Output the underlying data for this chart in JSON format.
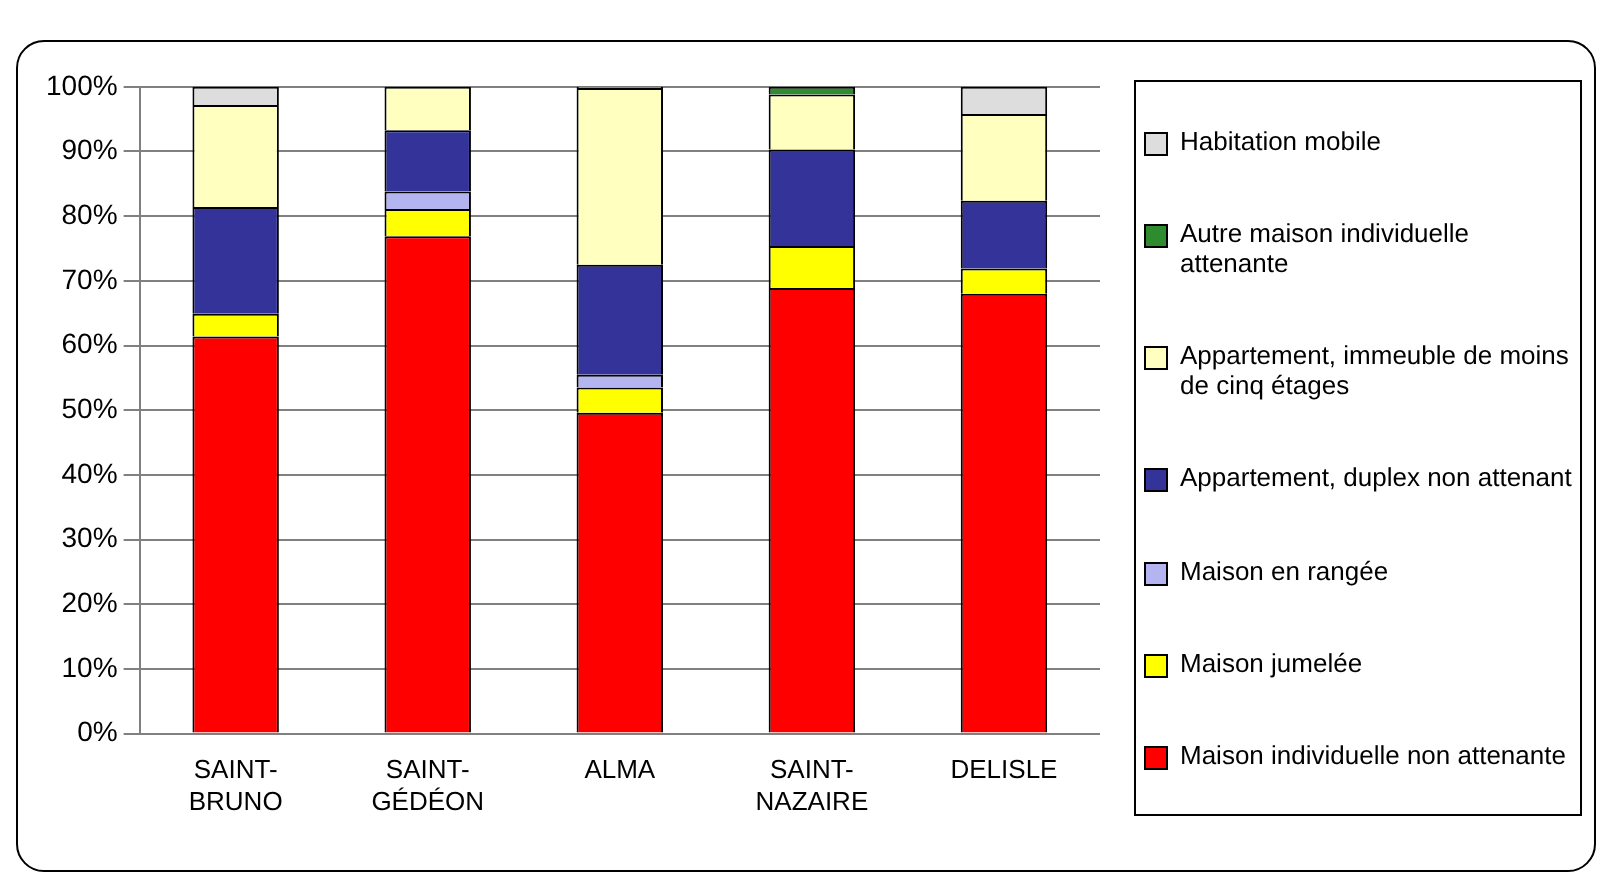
{
  "chart_data": {
    "type": "bar",
    "stacked": true,
    "categories": [
      "SAINT-BRUNO",
      "SAINT-GÉDÉON",
      "ALMA",
      "SAINT-NAZAIRE",
      "DELISLE"
    ],
    "series": [
      {
        "name": "Maison individuelle non attenante",
        "color": "#ff0000",
        "values": [
          61.4,
          76.9,
          49.6,
          68.9,
          68
        ]
      },
      {
        "name": "Maison jumelée",
        "color": "#ffff00",
        "values": [
          3.5,
          4.2,
          3.9,
          6.5,
          3.9
        ]
      },
      {
        "name": "Maison en rangée",
        "color": "#b4b4f0",
        "values": [
          0,
          2.7,
          2,
          0,
          0
        ]
      },
      {
        "name": "Appartement, duplex non attenant",
        "color": "#333399",
        "values": [
          16.5,
          9.5,
          17,
          14.9,
          10.5
        ]
      },
      {
        "name": "Appartement, immeuble de moins de cinq étages",
        "color": "#ffffc0",
        "values": [
          15.8,
          6.7,
          27.3,
          8.5,
          13.4
        ]
      },
      {
        "name": "Autre maison individuelle attenante",
        "color": "#2e8b2e",
        "values": [
          0,
          0,
          0,
          1.2,
          0
        ]
      },
      {
        "name": "Habitation mobile",
        "color": "#dddddd",
        "values": [
          2.8,
          0,
          0.2,
          0,
          4.2
        ]
      }
    ],
    "ylim": [
      0,
      100
    ],
    "yticks": [
      {
        "value": 0,
        "label": "0%"
      },
      {
        "value": 10,
        "label": "10%"
      },
      {
        "value": 20,
        "label": "20%"
      },
      {
        "value": 30,
        "label": "30%"
      },
      {
        "value": 40,
        "label": "40%"
      },
      {
        "value": 50,
        "label": "50%"
      },
      {
        "value": 60,
        "label": "60%"
      },
      {
        "value": 70,
        "label": "70%"
      },
      {
        "value": 80,
        "label": "80%"
      },
      {
        "value": 90,
        "label": "90%"
      },
      {
        "value": 100,
        "label": "100%"
      }
    ],
    "grid": "y",
    "legend": "right"
  }
}
